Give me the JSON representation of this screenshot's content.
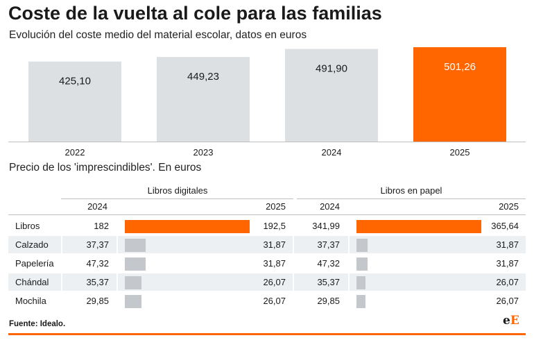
{
  "title": "Coste de la vuelta al cole para las familias",
  "subtitle": "Evolución del coste medio del material escolar, datos en euros",
  "colors": {
    "base_bar": "#dce0e3",
    "highlight": "#ff6600",
    "small_bar": "#c4c8cc",
    "text_dark": "#1a1a1a",
    "text_light": "#ffffff"
  },
  "chart_data": [
    {
      "type": "bar",
      "title": "Coste de la vuelta al cole para las familias",
      "subtitle": "Evolución del coste medio del material escolar, datos en euros",
      "categories": [
        "2022",
        "2023",
        "2024",
        "2025"
      ],
      "values": [
        425.1,
        449.23,
        491.9,
        501.26
      ],
      "value_labels": [
        "425,10",
        "449,23",
        "491,90",
        "501,26"
      ],
      "highlight_index": 3,
      "ylim": [
        0,
        501.26
      ],
      "grid": false,
      "legend": "none"
    },
    {
      "type": "table",
      "title": "Precio de los 'imprescindibles'. En euros",
      "groups": [
        "Libros digitales",
        "Libros en papel"
      ],
      "years": [
        "2024",
        "2025"
      ],
      "rows": [
        {
          "label": "Libros",
          "digital_2024": "182",
          "digital_2025": "192,5",
          "digital_2025_value": 192.5,
          "paper_2024": "341,99",
          "paper_2025": "365,64",
          "paper_2025_value": 365.64
        },
        {
          "label": "Calzado",
          "digital_2024": "37,37",
          "digital_2025": "31,87",
          "digital_2025_value": 31.87,
          "paper_2024": "37,37",
          "paper_2025": "31,87",
          "paper_2025_value": 31.87
        },
        {
          "label": "Papelería",
          "digital_2024": "47,32",
          "digital_2025": "31,87",
          "digital_2025_value": 31.87,
          "paper_2024": "47,32",
          "paper_2025": "31,87",
          "paper_2025_value": 31.87
        },
        {
          "label": "Chándal",
          "digital_2024": "35,37",
          "digital_2025": "26,07",
          "digital_2025_value": 26.07,
          "paper_2024": "35,37",
          "paper_2025": "26,07",
          "paper_2025_value": 26.07
        },
        {
          "label": "Mochila",
          "digital_2024": "29,85",
          "digital_2025": "26,07",
          "digital_2025_value": 26.07,
          "paper_2024": "29,85",
          "paper_2025": "26,07",
          "paper_2025_value": 26.07
        }
      ]
    }
  ],
  "source": "Fuente: Idealo.",
  "logo": {
    "part1": "e",
    "part2": "E"
  }
}
